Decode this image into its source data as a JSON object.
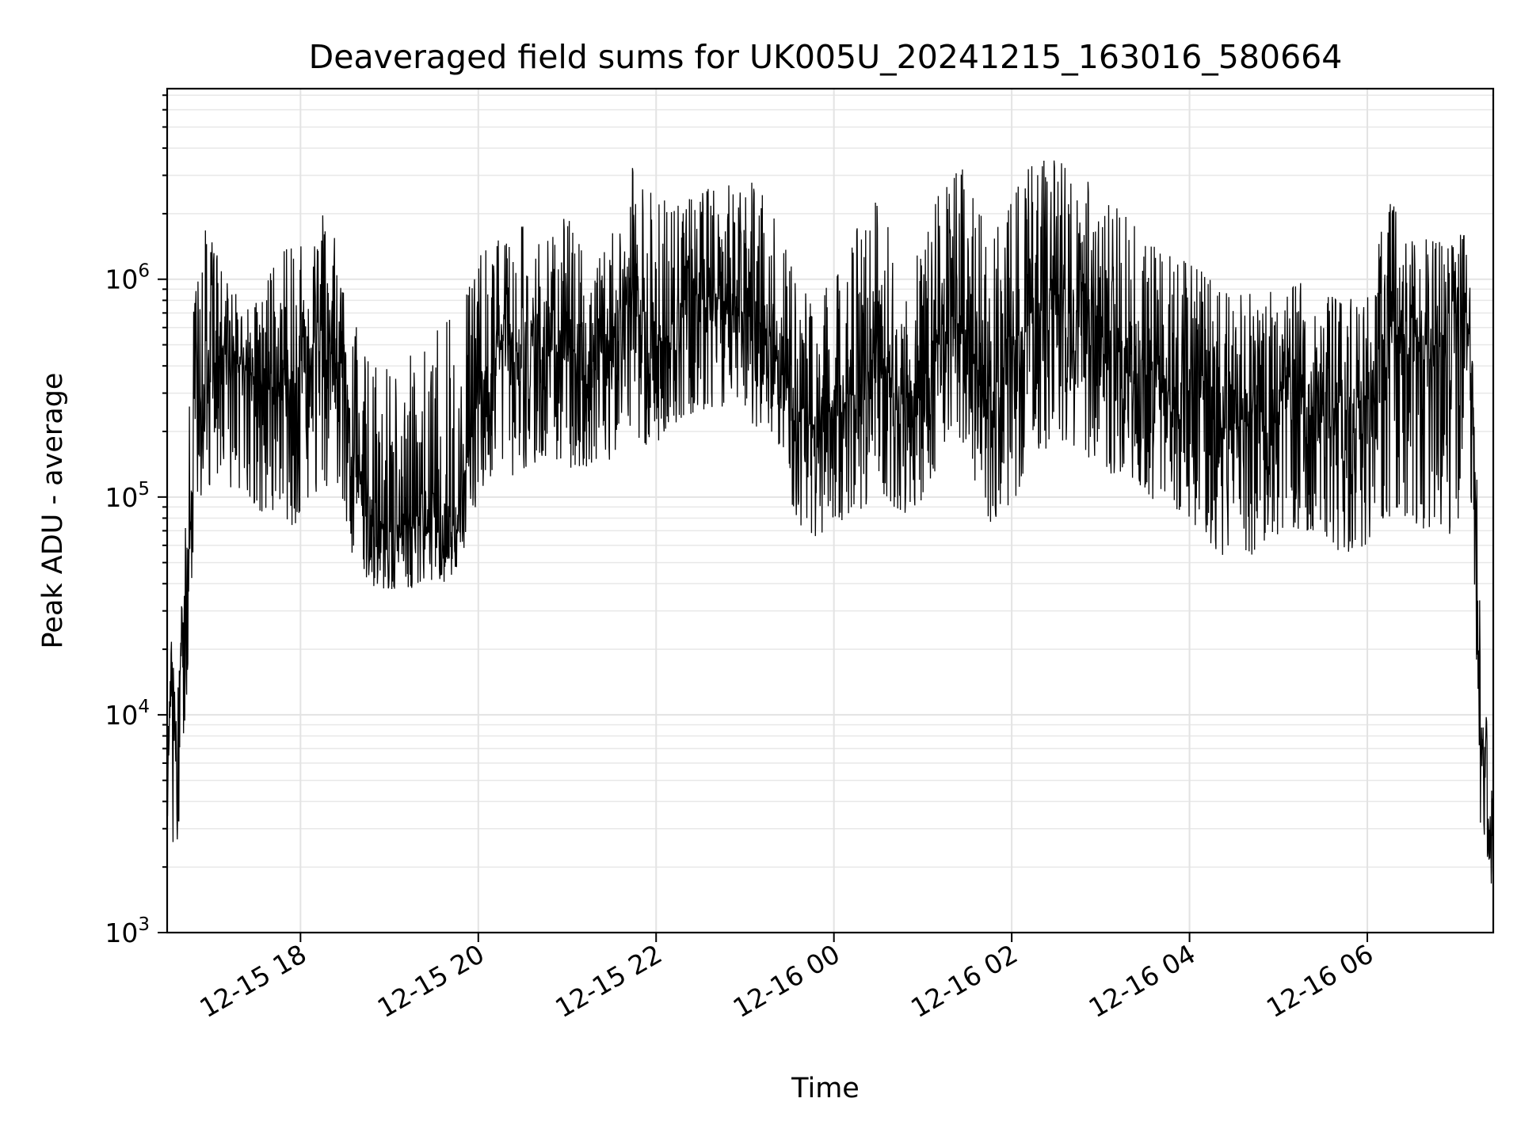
{
  "chart_data": {
    "type": "line",
    "title": "Deaveraged field sums for UK005U_20241215_163016_580664",
    "xlabel": "Time",
    "ylabel": "Peak ADU - average",
    "yscale": "log",
    "ylim": [
      1000,
      7500000
    ],
    "xlim": [
      "2024-12-15 16:30",
      "2024-12-16 07:25"
    ],
    "grid": true,
    "legend": "none",
    "line_color": "#000000",
    "y_ticks": [
      {
        "base": "10",
        "exp": "3"
      },
      {
        "base": "10",
        "exp": "4"
      },
      {
        "base": "10",
        "exp": "5"
      },
      {
        "base": "10",
        "exp": "6"
      }
    ],
    "x_ticks": [
      "12-15 18",
      "12-15 20",
      "12-15 22",
      "12-16 00",
      "12-16 02",
      "12-16 04",
      "12-16 06"
    ],
    "series": [
      {
        "x": [
          "2024-12-15 16:30",
          "2024-12-15 16:33",
          "2024-12-15 16:36",
          "2024-12-15 16:39",
          "2024-12-15 16:42",
          "2024-12-15 16:45",
          "2024-12-15 16:48",
          "2024-12-15 16:52",
          "2024-12-15 16:56",
          "2024-12-15 17:00",
          "2024-12-15 17:05",
          "2024-12-15 17:10",
          "2024-12-15 17:20",
          "2024-12-15 17:30",
          "2024-12-15 17:45",
          "2024-12-15 18:00",
          "2024-12-15 18:15",
          "2024-12-15 18:30",
          "2024-12-15 18:35",
          "2024-12-15 18:45",
          "2024-12-15 19:00",
          "2024-12-15 19:15",
          "2024-12-15 19:30",
          "2024-12-15 19:40",
          "2024-12-15 19:50",
          "2024-12-15 20:00",
          "2024-12-15 20:15",
          "2024-12-15 20:30",
          "2024-12-15 20:45",
          "2024-12-15 21:00",
          "2024-12-15 21:15",
          "2024-12-15 21:30",
          "2024-12-15 21:40",
          "2024-12-15 21:50",
          "2024-12-15 22:00",
          "2024-12-15 22:15",
          "2024-12-15 22:30",
          "2024-12-15 22:45",
          "2024-12-15 23:00",
          "2024-12-15 23:15",
          "2024-12-15 23:30",
          "2024-12-15 23:45",
          "2024-12-16 00:00",
          "2024-12-16 00:15",
          "2024-12-16 00:30",
          "2024-12-16 00:45",
          "2024-12-16 01:00",
          "2024-12-16 01:15",
          "2024-12-16 01:30",
          "2024-12-16 01:45",
          "2024-12-16 02:00",
          "2024-12-16 02:15",
          "2024-12-16 02:30",
          "2024-12-16 02:45",
          "2024-12-16 03:00",
          "2024-12-16 03:15",
          "2024-12-16 03:30",
          "2024-12-16 03:45",
          "2024-12-16 04:00",
          "2024-12-16 04:15",
          "2024-12-16 04:30",
          "2024-12-16 04:45",
          "2024-12-16 05:00",
          "2024-12-16 05:15",
          "2024-12-16 05:30",
          "2024-12-16 05:45",
          "2024-12-16 06:00",
          "2024-12-16 06:15",
          "2024-12-16 06:30",
          "2024-12-16 06:45",
          "2024-12-16 07:00",
          "2024-12-16 07:05",
          "2024-12-16 07:10",
          "2024-12-16 07:13",
          "2024-12-16 07:16",
          "2024-12-16 07:19",
          "2024-12-16 07:22",
          "2024-12-16 07:25"
        ],
        "y": [
          8000,
          12000,
          6000,
          15000,
          25000,
          60000,
          150000,
          250000,
          300000,
          350000,
          500000,
          450000,
          400000,
          350000,
          300000,
          400000,
          600000,
          500000,
          150000,
          90000,
          70000,
          80000,
          70000,
          60000,
          120000,
          300000,
          500000,
          450000,
          550000,
          500000,
          400000,
          500000,
          1000000,
          800000,
          500000,
          700000,
          900000,
          800000,
          700000,
          600000,
          300000,
          200000,
          250000,
          300000,
          500000,
          250000,
          400000,
          700000,
          600000,
          250000,
          500000,
          700000,
          900000,
          800000,
          700000,
          500000,
          400000,
          350000,
          300000,
          250000,
          200000,
          250000,
          300000,
          350000,
          300000,
          250000,
          300000,
          600000,
          500000,
          500000,
          700000,
          800000,
          500000,
          100000,
          10000,
          8000,
          3000,
          2000
        ],
        "upper": [
          18000,
          22000,
          15000,
          30000,
          70000,
          300000,
          800000,
          1500000,
          1800000,
          1500000,
          1300000,
          1000000,
          900000,
          800000,
          1400000,
          1500000,
          2000000,
          1600000,
          700000,
          500000,
          400000,
          450000,
          600000,
          700000,
          800000,
          1300000,
          1600000,
          1800000,
          1500000,
          2000000,
          1300000,
          1600000,
          3500000,
          3000000,
          2500000,
          2200000,
          2500000,
          2800000,
          3000000,
          2700000,
          1200000,
          800000,
          1000000,
          1800000,
          2600000,
          1200000,
          1500000,
          3000000,
          3500000,
          1400000,
          2500000,
          3500000,
          3800000,
          3200000,
          2500000,
          2000000,
          1600000,
          1300000,
          1200000,
          1000000,
          900000,
          850000,
          900000,
          1000000,
          900000,
          800000,
          900000,
          2500000,
          1600000,
          1500000,
          1600000,
          1700000,
          900000,
          250000,
          30000,
          14000,
          8000,
          4000
        ],
        "lower": [
          3500,
          2500,
          2200,
          3500,
          8000,
          20000,
          70000,
          90000,
          100000,
          120000,
          110000,
          100000,
          95000,
          80000,
          70000,
          75000,
          110000,
          90000,
          45000,
          40000,
          35000,
          38000,
          40000,
          40000,
          55000,
          100000,
          120000,
          130000,
          140000,
          130000,
          130000,
          150000,
          200000,
          180000,
          150000,
          220000,
          250000,
          250000,
          220000,
          200000,
          90000,
          60000,
          70000,
          80000,
          110000,
          80000,
          90000,
          180000,
          150000,
          75000,
          90000,
          140000,
          180000,
          160000,
          140000,
          110000,
          100000,
          90000,
          80000,
          60000,
          45000,
          55000,
          60000,
          65000,
          60000,
          55000,
          60000,
          80000,
          70000,
          70000,
          50000,
          150000,
          100000,
          30000,
          3000,
          2500,
          1500,
          1200
        ]
      }
    ]
  }
}
